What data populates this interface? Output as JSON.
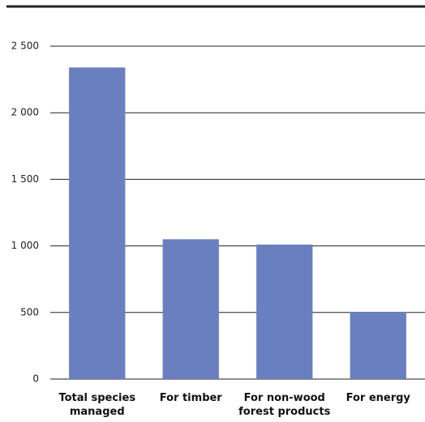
{
  "chart_data": {
    "type": "bar",
    "categories": [
      "Total species managed",
      "For timber",
      "For non-wood forest products",
      "For energy"
    ],
    "values": [
      2340,
      1050,
      1010,
      505
    ],
    "color": "#6a7fc0",
    "ylim": [
      0,
      2500
    ],
    "yticks": [
      0,
      500,
      {
        "value": 1000,
        "label": "1 000"
      },
      {
        "value": 1500,
        "label": "1 500"
      },
      {
        "value": 2000,
        "label": "2 000"
      },
      {
        "value": 2500,
        "label": "2 500"
      }
    ],
    "grid": true
  }
}
